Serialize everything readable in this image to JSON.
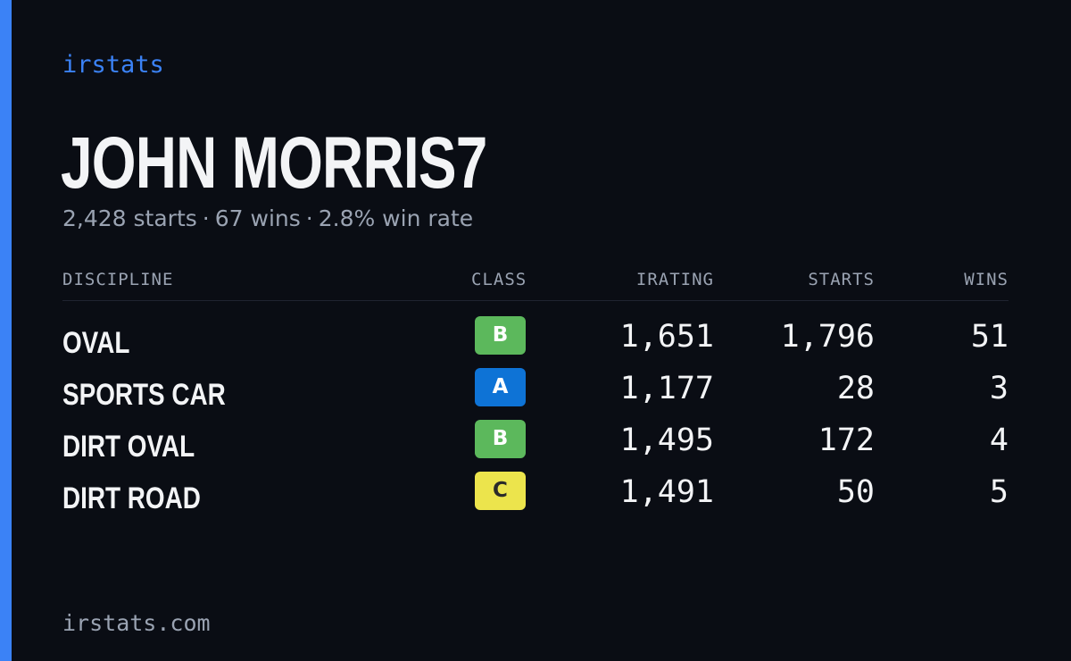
{
  "brand": "irstats",
  "driver": {
    "name": "JOHN MORRIS7",
    "starts_text": "2,428 starts",
    "wins_text": "67 wins",
    "win_rate_text": "2.8% win rate",
    "separator": "·"
  },
  "table": {
    "headers": {
      "discipline": "DISCIPLINE",
      "class": "CLASS",
      "irating": "IRATING",
      "starts": "STARTS",
      "wins": "WINS"
    },
    "rows": [
      {
        "discipline": "OVAL",
        "class": "B",
        "class_color": "#5cb85c",
        "class_text_color": "#ffffff",
        "irating": "1,651",
        "starts": "1,796",
        "wins": "51"
      },
      {
        "discipline": "SPORTS CAR",
        "class": "A",
        "class_color": "#0e73d6",
        "class_text_color": "#ffffff",
        "irating": "1,177",
        "starts": "28",
        "wins": "3"
      },
      {
        "discipline": "DIRT OVAL",
        "class": "B",
        "class_color": "#5cb85c",
        "class_text_color": "#ffffff",
        "irating": "1,495",
        "starts": "172",
        "wins": "4"
      },
      {
        "discipline": "DIRT ROAD",
        "class": "C",
        "class_color": "#ece44c",
        "class_text_color": "#2a2a2a",
        "irating": "1,491",
        "starts": "50",
        "wins": "5"
      }
    ]
  },
  "footer": "irstats.com",
  "colors": {
    "background": "#0a0d14",
    "accent": "#3b82f6",
    "text_primary": "#f3f4f6",
    "text_muted": "#9aa3b2"
  }
}
